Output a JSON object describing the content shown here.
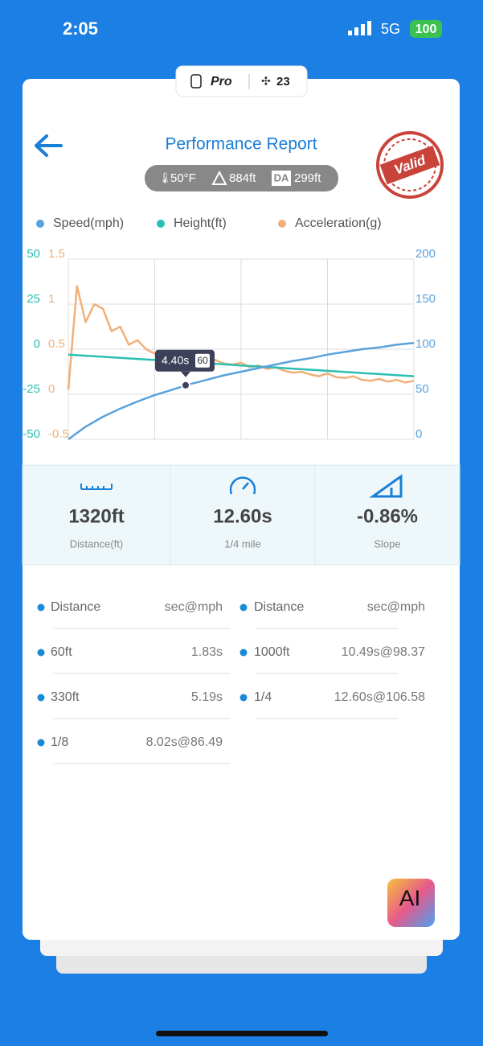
{
  "status_bar": {
    "time": "2:05",
    "network": "5G",
    "battery": "100"
  },
  "badge": {
    "plan": "Pro",
    "count": "23"
  },
  "header": {
    "title": "Performance Report",
    "temperature": "50°F",
    "altitude": "884ft",
    "da_label": "DA",
    "density_altitude": "299ft",
    "stamp": "Valid"
  },
  "chart_data": {
    "type": "line",
    "series": [
      {
        "name": "Speed(mph)",
        "color": "#5aa2dc",
        "axis": "y2",
        "values": [
          0,
          14,
          25,
          34,
          42,
          49,
          55,
          61,
          66,
          71,
          75,
          79,
          83,
          87,
          90,
          94,
          97,
          100,
          102,
          105,
          107
        ]
      },
      {
        "name": "Height(ft)",
        "color": "#2bbfb3",
        "axis": "y",
        "values": [
          -3,
          -3.6,
          -4.2,
          -4.8,
          -5.4,
          -6,
          -6.6,
          -7.2,
          -7.8,
          -8.4,
          -9,
          -9.6,
          -10.2,
          -10.8,
          -11.4,
          -12,
          -12.6,
          -13.2,
          -13.8,
          -14.4,
          -15
        ]
      },
      {
        "name": "Acceleration(g)",
        "color": "#f0b07a",
        "axis": "y3",
        "values": [
          0.05,
          1.2,
          0.8,
          1.0,
          0.95,
          0.7,
          0.75,
          0.55,
          0.6,
          0.5,
          0.45,
          0.48,
          0.42,
          0.44,
          0.4,
          0.38,
          0.36,
          0.38,
          0.34,
          0.33,
          0.35,
          0.3,
          0.32,
          0.28,
          0.3,
          0.26,
          0.24,
          0.25,
          0.22,
          0.2,
          0.23,
          0.19,
          0.18,
          0.2,
          0.16,
          0.15,
          0.17,
          0.14,
          0.16,
          0.13,
          0.15
        ]
      }
    ],
    "ylim": [
      -50,
      50
    ],
    "yticks": [
      -50,
      -25,
      0,
      25,
      50
    ],
    "y3lim": [
      -0.5,
      1.5
    ],
    "y3ticks": [
      -0.5,
      0,
      0.5,
      1,
      1.5
    ],
    "y2lim": [
      0,
      200
    ],
    "y2ticks": [
      0,
      50,
      100,
      150,
      200
    ],
    "grid": true,
    "tooltip": {
      "time": "4.40s",
      "speed": 60
    }
  },
  "stats": [
    {
      "value": "1320ft",
      "label": "Distance(ft)"
    },
    {
      "value": "12.60s",
      "label": "1/4 mile"
    },
    {
      "value": "-0.86%",
      "label": "Slope"
    }
  ],
  "table": {
    "columns": [
      {
        "header": [
          "Distance",
          "sec@mph"
        ],
        "rows": [
          [
            "60ft",
            "1.83s"
          ],
          [
            "330ft",
            "5.19s"
          ],
          [
            "1/8",
            "8.02s@86.49"
          ]
        ]
      },
      {
        "header": [
          "Distance",
          "sec@mph"
        ],
        "rows": [
          [
            "1000ft",
            "10.49s@98.37"
          ],
          [
            "1/4",
            "12.60s@106.58"
          ]
        ]
      }
    ]
  },
  "ai_button": "AI"
}
